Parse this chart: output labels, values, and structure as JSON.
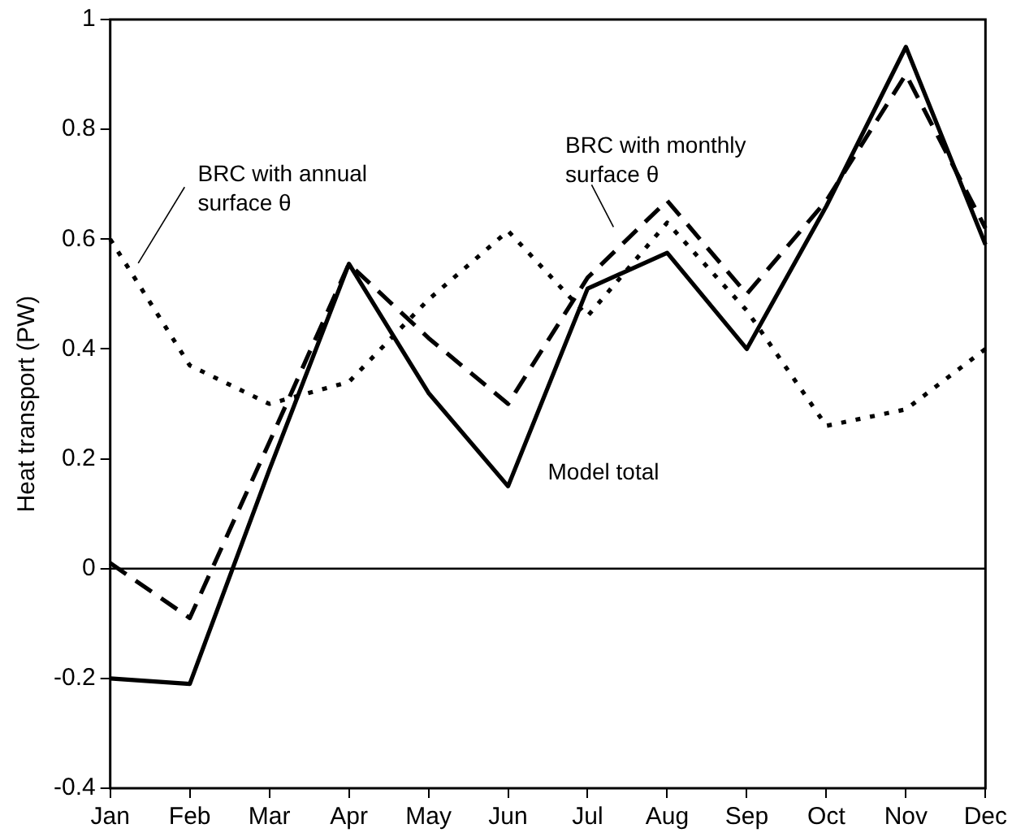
{
  "chart_data": {
    "type": "line",
    "ylabel": "Heat transport (PW)",
    "categories": [
      "Jan",
      "Feb",
      "Mar",
      "Apr",
      "May",
      "Jun",
      "Jul",
      "Aug",
      "Sep",
      "Oct",
      "Nov",
      "Dec"
    ],
    "series": [
      {
        "name": "Model total",
        "color": "#000000",
        "line_style": "solid",
        "values": [
          -0.2,
          -0.21,
          0.18,
          0.555,
          0.32,
          0.15,
          0.51,
          0.575,
          0.4,
          0.66,
          0.95,
          0.59
        ]
      },
      {
        "name": "BRC with monthly\nsurface θ",
        "color": "#000000",
        "line_style": "dashed",
        "values": [
          0.01,
          -0.09,
          0.23,
          0.555,
          0.42,
          0.3,
          0.53,
          0.67,
          0.5,
          0.67,
          0.9,
          0.62
        ]
      },
      {
        "name": "BRC with annual\nsurface θ",
        "color": "#000000",
        "line_style": "dotted",
        "values": [
          0.6,
          0.37,
          0.3,
          0.34,
          0.49,
          0.615,
          0.46,
          0.63,
          0.47,
          0.26,
          0.29,
          0.4
        ]
      }
    ],
    "ylim": [
      -0.4,
      1
    ],
    "yticks": [
      -0.4,
      -0.2,
      0,
      0.2,
      0.4,
      0.6,
      0.8,
      1
    ],
    "ref_lines": [
      {
        "axis": "y",
        "value": 0,
        "color": "#000000",
        "line_style": "solid"
      }
    ],
    "grid": false,
    "legend": false,
    "marker": "none"
  }
}
